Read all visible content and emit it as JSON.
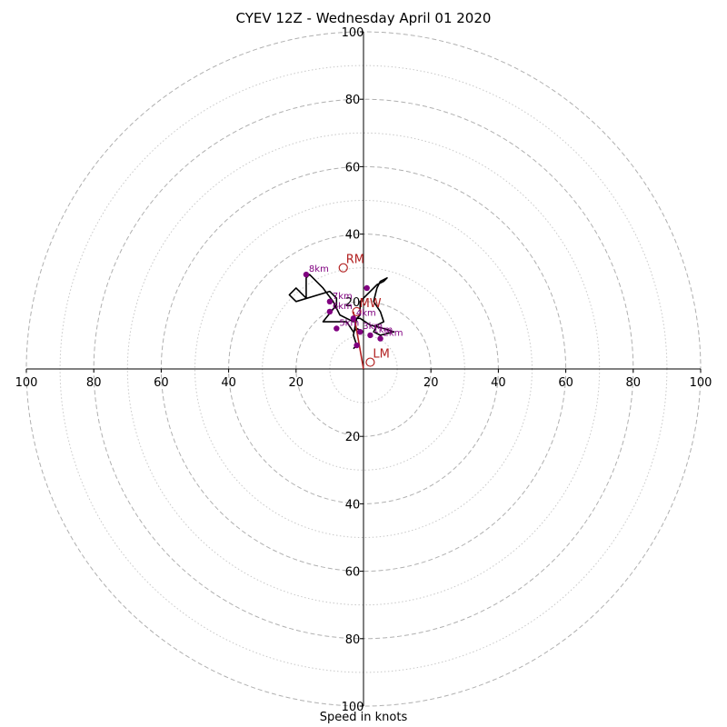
{
  "chart_data": {
    "type": "hodograph",
    "title": "CYEV 12Z - Wednesday April 01 2020",
    "xlabel": "Speed in knots",
    "xlim": [
      -100,
      100
    ],
    "ylim": [
      -100,
      100
    ],
    "rings_major": [
      20,
      40,
      60,
      80,
      100
    ],
    "rings_minor": [
      10,
      30,
      50,
      70,
      90
    ],
    "x_tick_labels": [
      "100",
      "80",
      "60",
      "40",
      "20",
      "20",
      "40",
      "60",
      "80",
      "100"
    ],
    "y_tick_labels": [
      "100",
      "80",
      "60",
      "40",
      "20",
      "20",
      "40",
      "60",
      "80",
      "100"
    ],
    "colors": {
      "ring": "#b0b0b0",
      "trace": "#000000",
      "height_marker": "#800080",
      "motion": "#b22222"
    },
    "hodograph_trace": [
      [
        0,
        11
      ],
      [
        -2,
        12
      ],
      [
        -3,
        11
      ],
      [
        -5,
        14
      ],
      [
        -12,
        14
      ],
      [
        -8,
        19
      ],
      [
        -8,
        21
      ],
      [
        -10,
        23
      ],
      [
        -20,
        20
      ],
      [
        -22,
        22
      ],
      [
        -20,
        24
      ],
      [
        -17,
        21
      ],
      [
        -17,
        27
      ],
      [
        -16,
        28
      ],
      [
        -12,
        24
      ],
      [
        -9,
        20
      ],
      [
        -7,
        16
      ],
      [
        -3,
        14
      ],
      [
        -1,
        16
      ],
      [
        -1,
        20
      ],
      [
        0,
        21
      ],
      [
        2,
        23
      ],
      [
        4,
        25
      ],
      [
        6,
        26
      ],
      [
        7,
        27
      ],
      [
        5,
        26
      ],
      [
        4,
        24
      ],
      [
        3,
        20
      ],
      [
        5,
        17
      ],
      [
        6,
        14
      ],
      [
        4,
        13
      ],
      [
        3,
        11
      ],
      [
        5,
        10
      ],
      [
        9,
        11
      ],
      [
        6,
        12
      ],
      [
        2,
        13
      ],
      [
        -1,
        15
      ],
      [
        -2,
        15
      ],
      [
        -3,
        10
      ],
      [
        -2,
        7
      ],
      [
        -3,
        6
      ]
    ],
    "height_markers": [
      {
        "label": "1km",
        "u": 2,
        "v": 10
      },
      {
        "label": "2km",
        "u": 5,
        "v": 9
      },
      {
        "label": "3km",
        "u": -1,
        "v": 11
      },
      {
        "label": "4km",
        "u": -3,
        "v": 15
      },
      {
        "label": "5km",
        "u": -8,
        "v": 12
      },
      {
        "label": "6km",
        "u": -10,
        "v": 17
      },
      {
        "label": "7km",
        "u": -10,
        "v": 20
      },
      {
        "label": "8km",
        "u": -17,
        "v": 28
      },
      {
        "label": "",
        "u": 1,
        "v": 24
      },
      {
        "label": "",
        "u": -2,
        "v": 7
      }
    ],
    "storm_motion": {
      "segment": [
        [
          0,
          0
        ],
        [
          -3,
          17
        ]
      ],
      "points": [
        {
          "label": "RM",
          "u": -6,
          "v": 30
        },
        {
          "label": "LM",
          "u": 2,
          "v": 2
        },
        {
          "label": "MW",
          "u": -2,
          "v": 17
        }
      ]
    }
  }
}
